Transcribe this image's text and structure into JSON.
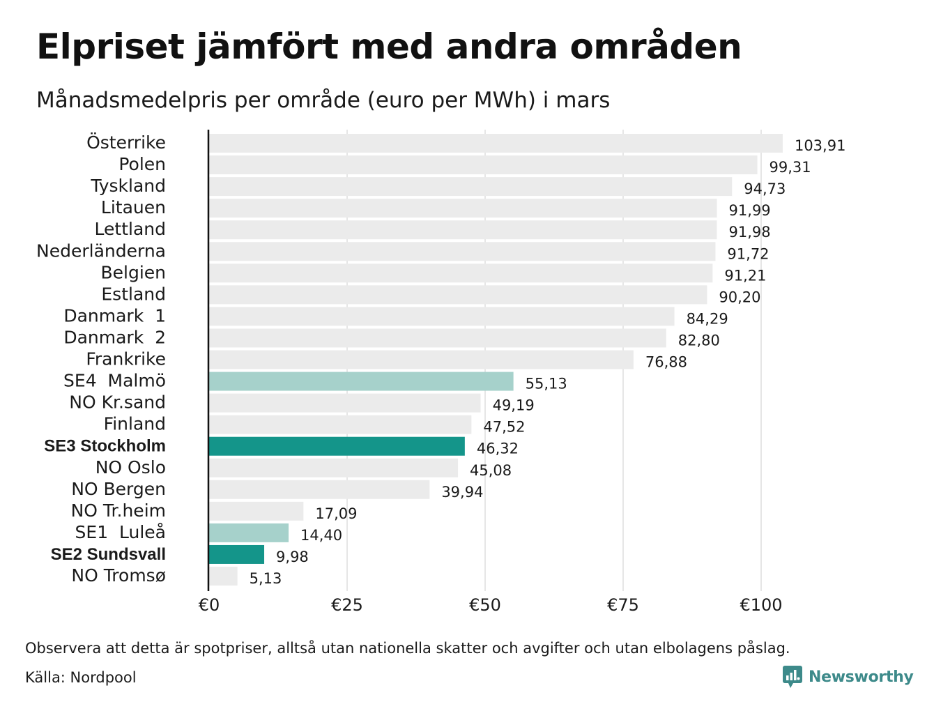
{
  "header": {
    "title": "Elpriset jämfört med andra områden",
    "subtitle": "Månadsmedelpris per område (euro per MWh) i mars"
  },
  "footer": {
    "note": "Observera att detta är spotpriser, alltså utan nationella skatter och avgifter och utan elbolagens påslag.",
    "source": "Källa: Nordpool",
    "logo_text": "Newsworthy",
    "logo_icon": "newsworthy-bar-chart-speech-bubble-icon"
  },
  "colors": {
    "default_bar": "#ebebeb",
    "highlight_light": "#a6d1cb",
    "highlight_dark": "#14958a",
    "grid": "#cccccc",
    "axis": "#111111",
    "logo": "#3d8a8a"
  },
  "chart_data": {
    "type": "bar",
    "orientation": "horizontal",
    "categories": [
      "Österrike",
      "Polen",
      "Tyskland",
      "Litauen",
      "Lettland",
      "Nederländerna",
      "Belgien",
      "Estland",
      "Danmark  1",
      "Danmark  2",
      "Frankrike",
      "SE4  Malmö",
      "NO Kr.sand",
      "Finland",
      "SE3 Stockholm",
      "NO Oslo",
      "NO Bergen",
      "NO Tr.heim",
      "SE1  Luleå",
      "SE2 Sundsvall",
      "NO Tromsø"
    ],
    "values": [
      103.91,
      99.31,
      94.73,
      91.99,
      91.98,
      91.72,
      91.21,
      90.2,
      84.29,
      82.8,
      76.88,
      55.13,
      49.19,
      47.52,
      46.32,
      45.08,
      39.94,
      17.09,
      14.4,
      9.98,
      5.13
    ],
    "value_labels": [
      "103,91",
      "99,31",
      "94,73",
      "91,99",
      "91,98",
      "91,72",
      "91,21",
      "90,20",
      "84,29",
      "82,80",
      "76,88",
      "55,13",
      "49,19",
      "47,52",
      "46,32",
      "45,08",
      "39,94",
      "17,09",
      "14,40",
      "9,98",
      "5,13"
    ],
    "highlight": [
      "none",
      "none",
      "none",
      "none",
      "none",
      "none",
      "none",
      "none",
      "none",
      "none",
      "none",
      "light",
      "none",
      "none",
      "dark",
      "none",
      "none",
      "none",
      "light",
      "dark",
      "none"
    ],
    "bold_labels": [
      "SE3 Stockholm",
      "SE2 Sundsvall"
    ],
    "x_ticks": [
      0,
      25,
      50,
      75,
      100
    ],
    "x_tick_labels": [
      "€0",
      "€25",
      "€50",
      "€75",
      "€100"
    ],
    "xlim": [
      0,
      105
    ],
    "grid": true,
    "legend": "none"
  }
}
